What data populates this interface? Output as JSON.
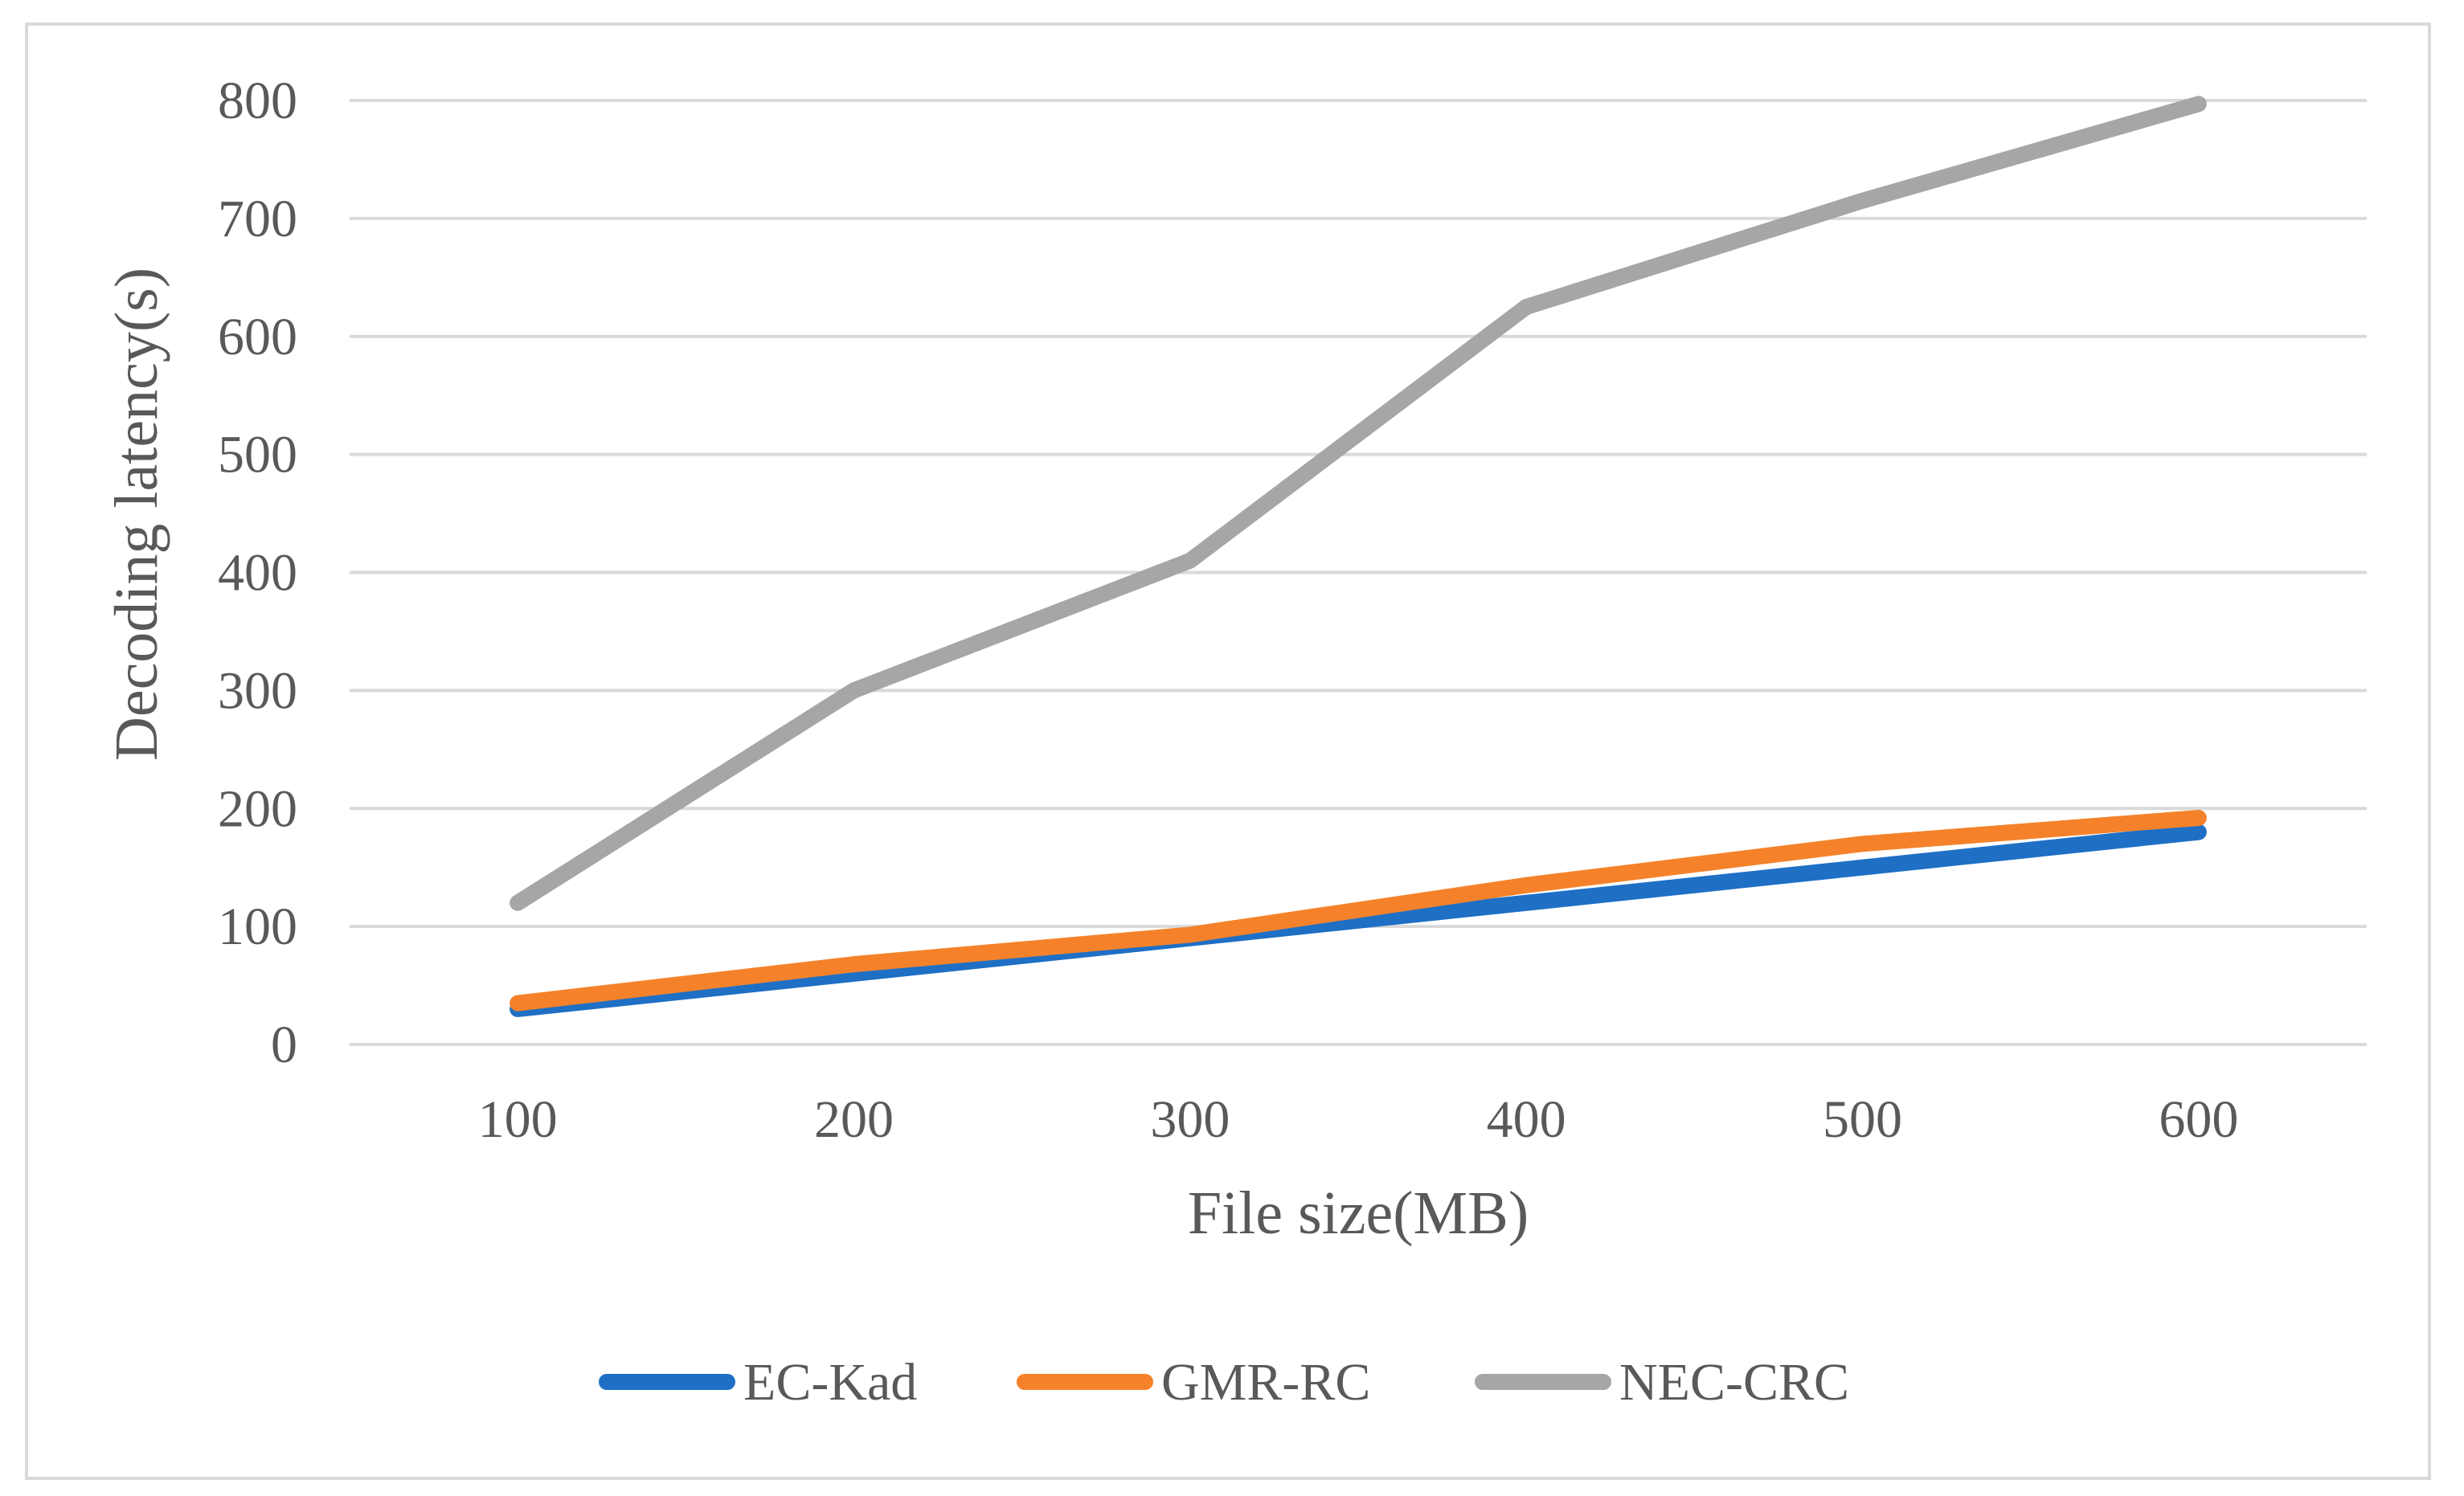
{
  "chart_data": {
    "type": "line",
    "x": [
      100,
      200,
      300,
      400,
      500,
      600
    ],
    "xlabel": "File size(MB)",
    "ylabel": "Decoding latency(s)",
    "ylim": [
      0,
      800
    ],
    "yticks": [
      0,
      100,
      200,
      300,
      400,
      500,
      600,
      700,
      800
    ],
    "grid": true,
    "legend_position": "bottom",
    "series": [
      {
        "name": "EC-Kad",
        "color": "#1f6fc5",
        "values": [
          30,
          60,
          90,
          120,
          150,
          180
        ]
      },
      {
        "name": "GMR-RC",
        "color": "#f5822a",
        "values": [
          35,
          68,
          93,
          135,
          170,
          192
        ]
      },
      {
        "name": "NEC-CRC",
        "color": "#a6a6a6",
        "values": [
          120,
          300,
          410,
          625,
          715,
          797
        ]
      }
    ]
  }
}
